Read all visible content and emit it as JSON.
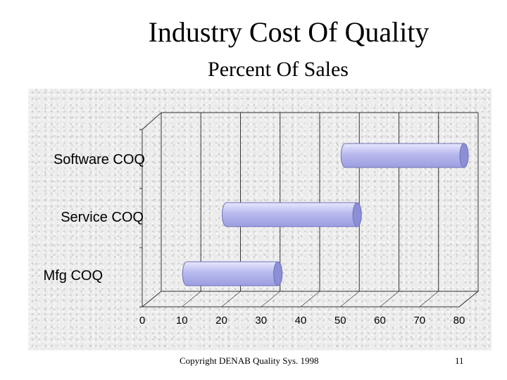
{
  "slide": {
    "title": "Industry Cost Of Quality",
    "subtitle": "Percent Of Sales",
    "copyright": "Copyright DENAB Quality Sys. 1998",
    "page_number": "11"
  },
  "colors": {
    "bar_fill": "#b8b9ee",
    "bar_edge": "#6f71b8",
    "grid": "#333333"
  },
  "chart_data": {
    "type": "bar",
    "orientation": "horizontal",
    "title": "Industry Cost Of Quality",
    "subtitle": "Percent Of Sales",
    "xlabel": "",
    "ylabel": "",
    "xlim": [
      0,
      80
    ],
    "xticks": [
      "0",
      "10",
      "20",
      "30",
      "40",
      "50",
      "60",
      "70",
      "80"
    ],
    "categories": [
      "Software COQ",
      "Service COQ",
      "Mfg COQ"
    ],
    "series": [
      {
        "name": "Percent Of Sales",
        "ranges": [
          [
            50,
            80
          ],
          [
            20,
            53
          ],
          [
            10,
            33
          ]
        ]
      }
    ],
    "grid": true,
    "legend": "none"
  }
}
